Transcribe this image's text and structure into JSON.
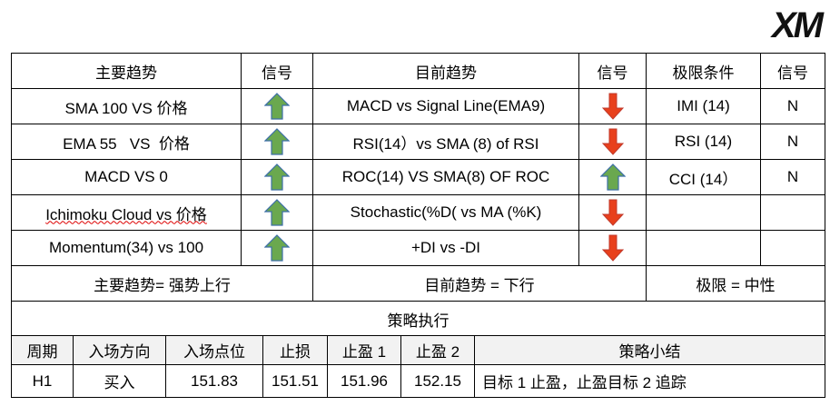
{
  "logo": "XM",
  "table": {
    "header": [
      "主要趋势",
      "信号",
      "目前趋势",
      "信号",
      "极限条件",
      "信号"
    ],
    "rows": [
      {
        "main": "SMA 100 VS  价格",
        "current": "MACD vs Signal Line(EMA9)",
        "limit": "IMI (14)",
        "limit_signal": "N"
      },
      {
        "main": "EMA 55   VS  价格",
        "current": "RSI(14）vs SMA (8) of RSI",
        "limit": "RSI (14)",
        "limit_signal": "N"
      },
      {
        "main": "MACD VS 0",
        "current": "ROC(14) VS SMA(8) OF ROC",
        "limit": "CCI (14）",
        "limit_signal": "N"
      },
      {
        "main": "Ichimoku Cloud vs 价格",
        "current": "Stochastic(%D( vs MA (%K)"
      },
      {
        "main": "Momentum(34) vs 100",
        "current": "+DI vs -DI"
      }
    ],
    "summary": [
      "主要趋势= 强势上行",
      "目前趋势 = 下行",
      "极限 = 中性"
    ]
  },
  "strategy": {
    "title": "策略执行",
    "header": [
      "周期",
      "入场方向",
      "入场点位",
      "止损",
      "止盈 1",
      "止盈 2",
      "策略小结"
    ],
    "row": [
      "H1",
      "买入",
      151.83,
      151.51,
      151.96,
      152.15,
      "目标 1 止盈，止盈目标 2 追踪"
    ]
  }
}
